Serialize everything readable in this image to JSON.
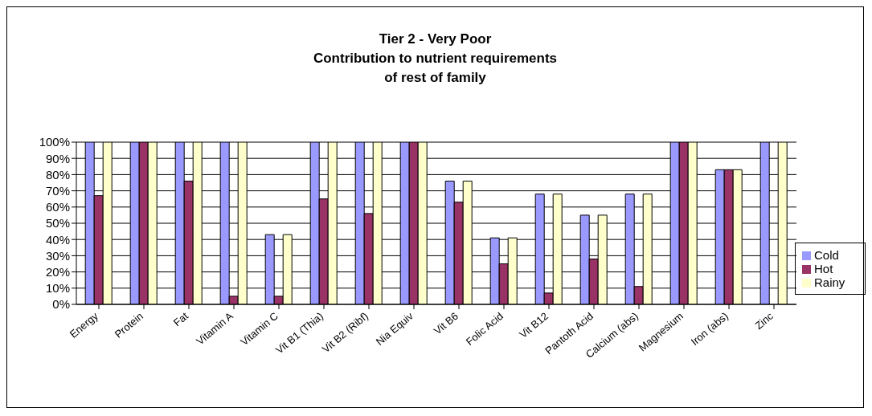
{
  "chart_data": {
    "type": "bar",
    "title": "Tier 2 - Very Poor\nContribution to nutrient requirements\nof rest of family",
    "categories": [
      "Energy",
      "Protein",
      "Fat",
      "Vitamin A",
      "Vitamin C",
      "Vit B1 (Thia)",
      "Vit B2 (Ribf)",
      "Nia Equiv",
      "Vit B6",
      "Folic Acid",
      "Vit B12",
      "Pantoth Acid",
      "Calcium (abs)",
      "Magnesium",
      "Iron (abs)",
      "Zinc"
    ],
    "series": [
      {
        "name": "Cold",
        "color": "#9999ff",
        "values": [
          100,
          100,
          100,
          100,
          43,
          100,
          100,
          100,
          76,
          41,
          68,
          55,
          68,
          100,
          83,
          100
        ]
      },
      {
        "name": "Hot",
        "color": "#993366",
        "values": [
          67,
          100,
          76,
          5,
          5,
          65,
          56,
          100,
          63,
          25,
          7,
          28,
          11,
          100,
          83,
          0
        ]
      },
      {
        "name": "Rainy",
        "color": "#ffffcc",
        "values": [
          100,
          100,
          100,
          100,
          43,
          100,
          100,
          100,
          76,
          41,
          68,
          55,
          68,
          100,
          83,
          100
        ]
      }
    ],
    "ylim": [
      0,
      100
    ],
    "yticks": [
      {
        "value": 0,
        "label": "0%"
      },
      {
        "value": 10,
        "label": "10%"
      },
      {
        "value": 20,
        "label": "20%"
      },
      {
        "value": 30,
        "label": "30%"
      },
      {
        "value": 40,
        "label": "40%"
      },
      {
        "value": 50,
        "label": "50%"
      },
      {
        "value": 60,
        "label": "60%"
      },
      {
        "value": 70,
        "label": "70%"
      },
      {
        "value": 80,
        "label": "80%"
      },
      {
        "value": 90,
        "label": "90%"
      },
      {
        "value": 100,
        "label": "100%"
      }
    ],
    "grid": "y",
    "legend": "right"
  }
}
